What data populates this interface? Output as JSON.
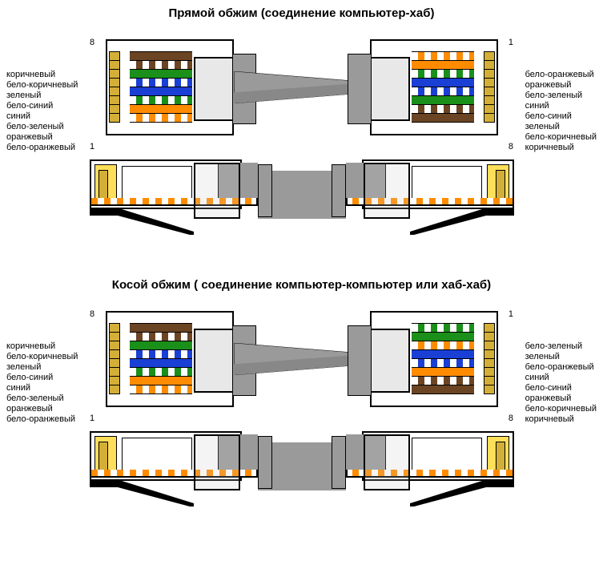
{
  "colors": {
    "brown": "#6b4423",
    "white_brown_a": "#ffffff",
    "white_brown_b": "#6b4423",
    "green": "#1a8f1a",
    "white_green_a": "#ffffff",
    "white_green_b": "#1a8f1a",
    "blue": "#1a3fd4",
    "white_blue_a": "#ffffff",
    "white_blue_b": "#1a3fd4",
    "orange": "#ff8c00",
    "white_orange_a": "#ffffff",
    "white_orange_b": "#ff8c00",
    "gold": "#d4af37",
    "sheath": "#9a9a9a"
  },
  "sections": [
    {
      "title": "Прямой обжим (соединение компьютер-хаб)",
      "left_pin_top": "8",
      "left_pin_bottom": "1",
      "right_pin_top": "1",
      "right_pin_bottom": "8",
      "left_labels": [
        "коричневый",
        "бело-коричневый",
        "зеленый",
        "бело-синий",
        "синий",
        "бело-зеленый",
        "оранжевый",
        "бело-оранжевый"
      ],
      "right_labels": [
        "бело-оранжевый",
        "оранжевый",
        "бело-зеленый",
        "синий",
        "бело-синий",
        "зеленый",
        "бело-коричневый",
        "коричневый"
      ],
      "left_wires": [
        "brown",
        "white_brown",
        "green",
        "white_blue",
        "blue",
        "white_green",
        "orange",
        "white_orange"
      ],
      "right_wires": [
        "white_orange",
        "orange",
        "white_green",
        "blue",
        "white_blue",
        "green",
        "white_brown",
        "brown"
      ]
    },
    {
      "title": "Косой обжим ( соединение компьютер-компьютер или хаб-хаб)",
      "left_pin_top": "8",
      "left_pin_bottom": "1",
      "right_pin_top": "1",
      "right_pin_bottom": "8",
      "left_labels": [
        "коричневый",
        "бело-коричневый",
        "зеленый",
        "бело-синий",
        "синий",
        "бело-зеленый",
        "оранжевый",
        "бело-оранжевый"
      ],
      "right_labels": [
        "бело-зеленый",
        "зеленый",
        "бело-оранжевый",
        "синий",
        "бело-синий",
        "оранжевый",
        "бело-коричневый",
        "коричневый"
      ],
      "left_wires": [
        "brown",
        "white_brown",
        "green",
        "white_blue",
        "blue",
        "white_green",
        "orange",
        "white_orange"
      ],
      "right_wires": [
        "white_green",
        "green",
        "white_orange",
        "blue",
        "white_blue",
        "orange",
        "white_brown",
        "brown"
      ]
    }
  ]
}
